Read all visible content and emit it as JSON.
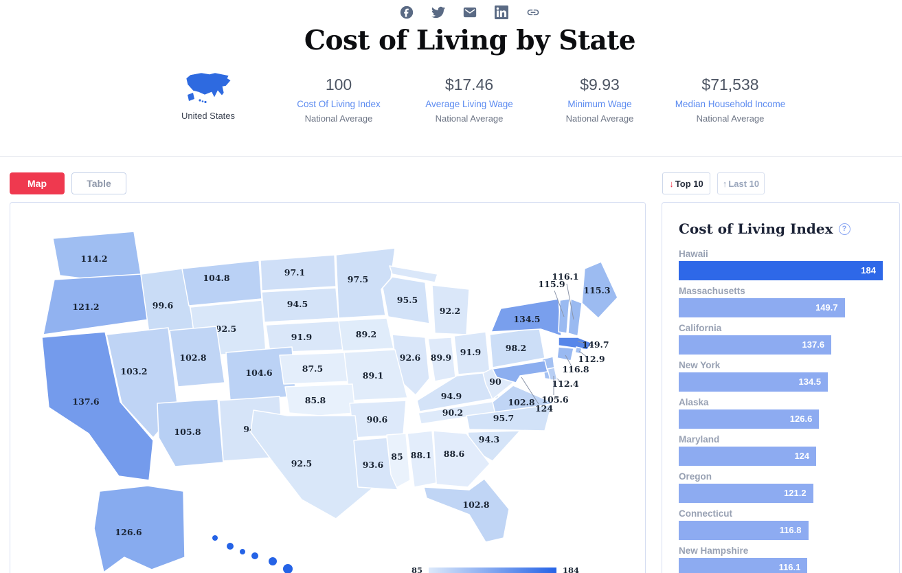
{
  "share": {
    "icons": [
      {
        "name": "facebook"
      },
      {
        "name": "twitter"
      },
      {
        "name": "email"
      },
      {
        "name": "linkedin"
      },
      {
        "name": "copy-link"
      }
    ]
  },
  "header": {
    "title": "Cost of Living by State",
    "country": {
      "label": "United States"
    },
    "stats": [
      {
        "value": "100",
        "label": "Cost Of Living Index",
        "sub": "National Average"
      },
      {
        "value": "$17.46",
        "label": "Average Living Wage",
        "sub": "National Average"
      },
      {
        "value": "$9.93",
        "label": "Minimum Wage",
        "sub": "National Average"
      },
      {
        "value": "$71,538",
        "label": "Median Household Income",
        "sub": "National Average"
      }
    ]
  },
  "controls": {
    "map_label": "Map",
    "table_label": "Table",
    "top10_label": "Top 10",
    "top10_icon": "↓",
    "last10_label": "Last 10",
    "last10_icon": "↑"
  },
  "panel": {
    "title": "Cost of Living Index",
    "help_glyph": "?"
  },
  "legend": {
    "min": "85",
    "max": "184"
  },
  "colors": {
    "accent_red": "#ef394f",
    "link_blue": "#5c8bf0",
    "bar_max": "#2e68e8",
    "bar_default": "#8dabf1",
    "map_min": "#eaf2fc",
    "map_max": "#2563e6"
  },
  "chart_data": [
    {
      "type": "heatmap",
      "subtype": "us-choropleth",
      "metric": "Cost of Living Index",
      "legend_range": [
        85,
        184
      ],
      "states": [
        {
          "abbr": "WA",
          "name": "Washington",
          "value": 114.2
        },
        {
          "abbr": "OR",
          "name": "Oregon",
          "value": 121.2
        },
        {
          "abbr": "ID",
          "name": "Idaho",
          "value": 99.6
        },
        {
          "abbr": "MT",
          "name": "Montana",
          "value": 104.8
        },
        {
          "abbr": "ND",
          "name": "North Dakota",
          "value": 97.1
        },
        {
          "abbr": "MN",
          "name": "Minnesota",
          "value": 97.5
        },
        {
          "abbr": "WI",
          "name": "Wisconsin",
          "value": 95.5
        },
        {
          "abbr": "MI",
          "name": "Michigan",
          "value": 92.2
        },
        {
          "abbr": "SD",
          "name": "South Dakota",
          "value": 94.5
        },
        {
          "abbr": "WY",
          "name": "Wyoming",
          "value": 92.5
        },
        {
          "abbr": "NE",
          "name": "Nebraska",
          "value": 91.9
        },
        {
          "abbr": "IA",
          "name": "Iowa",
          "value": 89.2
        },
        {
          "abbr": "IL",
          "name": "Illinois",
          "value": 92.6
        },
        {
          "abbr": "IN",
          "name": "Indiana",
          "value": 89.9
        },
        {
          "abbr": "OH",
          "name": "Ohio",
          "value": 91.9
        },
        {
          "abbr": "NV",
          "name": "Nevada",
          "value": 103.2
        },
        {
          "abbr": "UT",
          "name": "Utah",
          "value": 102.8
        },
        {
          "abbr": "CO",
          "name": "Colorado",
          "value": 104.6
        },
        {
          "abbr": "KS",
          "name": "Kansas",
          "value": 87.5
        },
        {
          "abbr": "MO",
          "name": "Missouri",
          "value": 89.1
        },
        {
          "abbr": "KY",
          "name": "Kentucky",
          "value": 94.9
        },
        {
          "abbr": "WV",
          "name": "West Virginia",
          "value": 90
        },
        {
          "abbr": "PA",
          "name": "Pennsylvania",
          "value": 98.2
        },
        {
          "abbr": "NY",
          "name": "New York",
          "value": 134.5
        },
        {
          "abbr": "CA",
          "name": "California",
          "value": 137.6
        },
        {
          "abbr": "AZ",
          "name": "Arizona",
          "value": 105.8
        },
        {
          "abbr": "NM",
          "name": "New Mexico",
          "value": 94
        },
        {
          "abbr": "OK",
          "name": "Oklahoma",
          "value": 85.8
        },
        {
          "abbr": "AR",
          "name": "Arkansas",
          "value": 90.6
        },
        {
          "abbr": "TN",
          "name": "Tennessee",
          "value": 90.2
        },
        {
          "abbr": "VA",
          "name": "Virginia",
          "value": 102.8
        },
        {
          "abbr": "NC",
          "name": "North Carolina",
          "value": 95.7
        },
        {
          "abbr": "SC",
          "name": "South Carolina",
          "value": 94.3
        },
        {
          "abbr": "GA",
          "name": "Georgia",
          "value": 88.6
        },
        {
          "abbr": "AL",
          "name": "Alabama",
          "value": 88.1
        },
        {
          "abbr": "MS",
          "name": "Mississippi",
          "value": 85
        },
        {
          "abbr": "TX",
          "name": "Texas",
          "value": 92.5
        },
        {
          "abbr": "LA",
          "name": "Louisiana",
          "value": 93.6
        },
        {
          "abbr": "FL",
          "name": "Florida",
          "value": 102.8
        },
        {
          "abbr": "ME",
          "name": "Maine",
          "value": 115.3
        },
        {
          "abbr": "VT",
          "name": "Vermont",
          "value": 115.9
        },
        {
          "abbr": "NH",
          "name": "New Hampshire",
          "value": 116.1
        },
        {
          "abbr": "MA",
          "name": "Massachusetts",
          "value": 149.7
        },
        {
          "abbr": "RI",
          "name": "Rhode Island",
          "value": 112.9
        },
        {
          "abbr": "CT",
          "name": "Connecticut",
          "value": 116.8
        },
        {
          "abbr": "NJ",
          "name": "New Jersey",
          "value": 112.4
        },
        {
          "abbr": "DE",
          "name": "Delaware",
          "value": 105.6
        },
        {
          "abbr": "MD",
          "name": "Maryland",
          "value": 124
        },
        {
          "abbr": "AK",
          "name": "Alaska",
          "value": 126.6
        },
        {
          "abbr": "HI",
          "name": "Hawaii",
          "value": 184,
          "label_on_map": false
        }
      ]
    },
    {
      "type": "bar",
      "orientation": "horizontal",
      "title": "Cost of Living Index",
      "categories": [
        "Hawaii",
        "Massachusetts",
        "California",
        "New York",
        "Alaska",
        "Maryland",
        "Oregon",
        "Connecticut",
        "New Hampshire"
      ],
      "values": [
        184,
        149.7,
        137.6,
        134.5,
        126.6,
        124,
        121.2,
        116.8,
        116.1
      ],
      "xlim": [
        0,
        184
      ],
      "legend_position": "none"
    }
  ]
}
